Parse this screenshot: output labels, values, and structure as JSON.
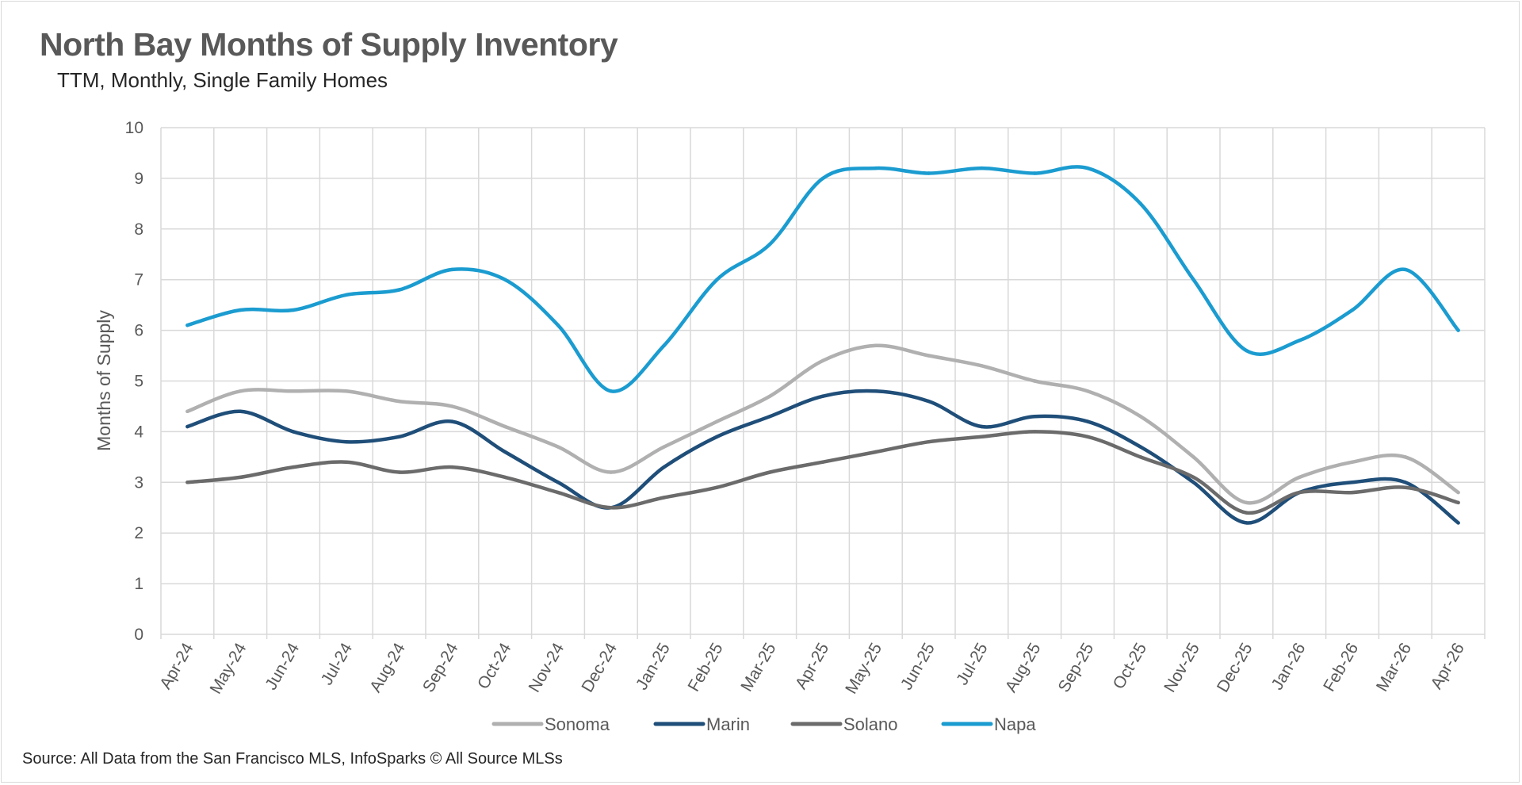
{
  "title": "North Bay Months of Supply Inventory",
  "subtitle": "TTM, Monthly, Single Family Homes",
  "source": "Source: All Data from the San Francisco MLS, InfoSparks © All Source MLSs",
  "chart_data": {
    "type": "line",
    "title": "North Bay Months of Supply Inventory",
    "subtitle": "TTM, Monthly, Single Family Homes",
    "xlabel": "",
    "ylabel": "Months of Supply",
    "ylim": [
      0,
      10
    ],
    "yticks": [
      0,
      1,
      2,
      3,
      4,
      5,
      6,
      7,
      8,
      9,
      10
    ],
    "grid": true,
    "smooth": true,
    "legend_position": "bottom",
    "categories": [
      "Apr-24",
      "May-24",
      "Jun-24",
      "Jul-24",
      "Aug-24",
      "Sep-24",
      "Oct-24",
      "Nov-24",
      "Dec-24",
      "Jan-25",
      "Feb-25",
      "Mar-25",
      "Apr-25",
      "May-25",
      "Jun-25",
      "Jul-25",
      "Aug-25",
      "Sep-25",
      "Oct-25",
      "Nov-25",
      "Dec-25",
      "Jan-26",
      "Feb-26",
      "Mar-26",
      "Apr-26"
    ],
    "series": [
      {
        "name": "Sonoma",
        "color": "#b0b0b0",
        "values": [
          4.4,
          4.8,
          4.8,
          4.8,
          4.6,
          4.5,
          4.1,
          3.7,
          3.2,
          3.7,
          4.2,
          4.7,
          5.4,
          5.7,
          5.5,
          5.3,
          5.0,
          4.8,
          4.3,
          3.5,
          2.6,
          3.1,
          3.4,
          3.5,
          2.8
        ]
      },
      {
        "name": "Marin",
        "color": "#1f4e79",
        "values": [
          4.1,
          4.4,
          4.0,
          3.8,
          3.9,
          4.2,
          3.6,
          3.0,
          2.5,
          3.3,
          3.9,
          4.3,
          4.7,
          4.8,
          4.6,
          4.1,
          4.3,
          4.2,
          3.7,
          3.0,
          2.2,
          2.8,
          3.0,
          3.0,
          2.2
        ]
      },
      {
        "name": "Solano",
        "color": "#6b6b6b",
        "values": [
          3.0,
          3.1,
          3.3,
          3.4,
          3.2,
          3.3,
          3.1,
          2.8,
          2.5,
          2.7,
          2.9,
          3.2,
          3.4,
          3.6,
          3.8,
          3.9,
          4.0,
          3.9,
          3.5,
          3.1,
          2.4,
          2.8,
          2.8,
          2.9,
          2.6
        ]
      },
      {
        "name": "Napa",
        "color": "#1b9cd0",
        "values": [
          6.1,
          6.4,
          6.4,
          6.7,
          6.8,
          7.2,
          7.0,
          6.1,
          4.8,
          5.7,
          7.0,
          7.7,
          9.0,
          9.2,
          9.1,
          9.2,
          9.1,
          9.2,
          8.5,
          7.0,
          5.6,
          5.8,
          6.4,
          7.2,
          6.0
        ]
      }
    ]
  }
}
